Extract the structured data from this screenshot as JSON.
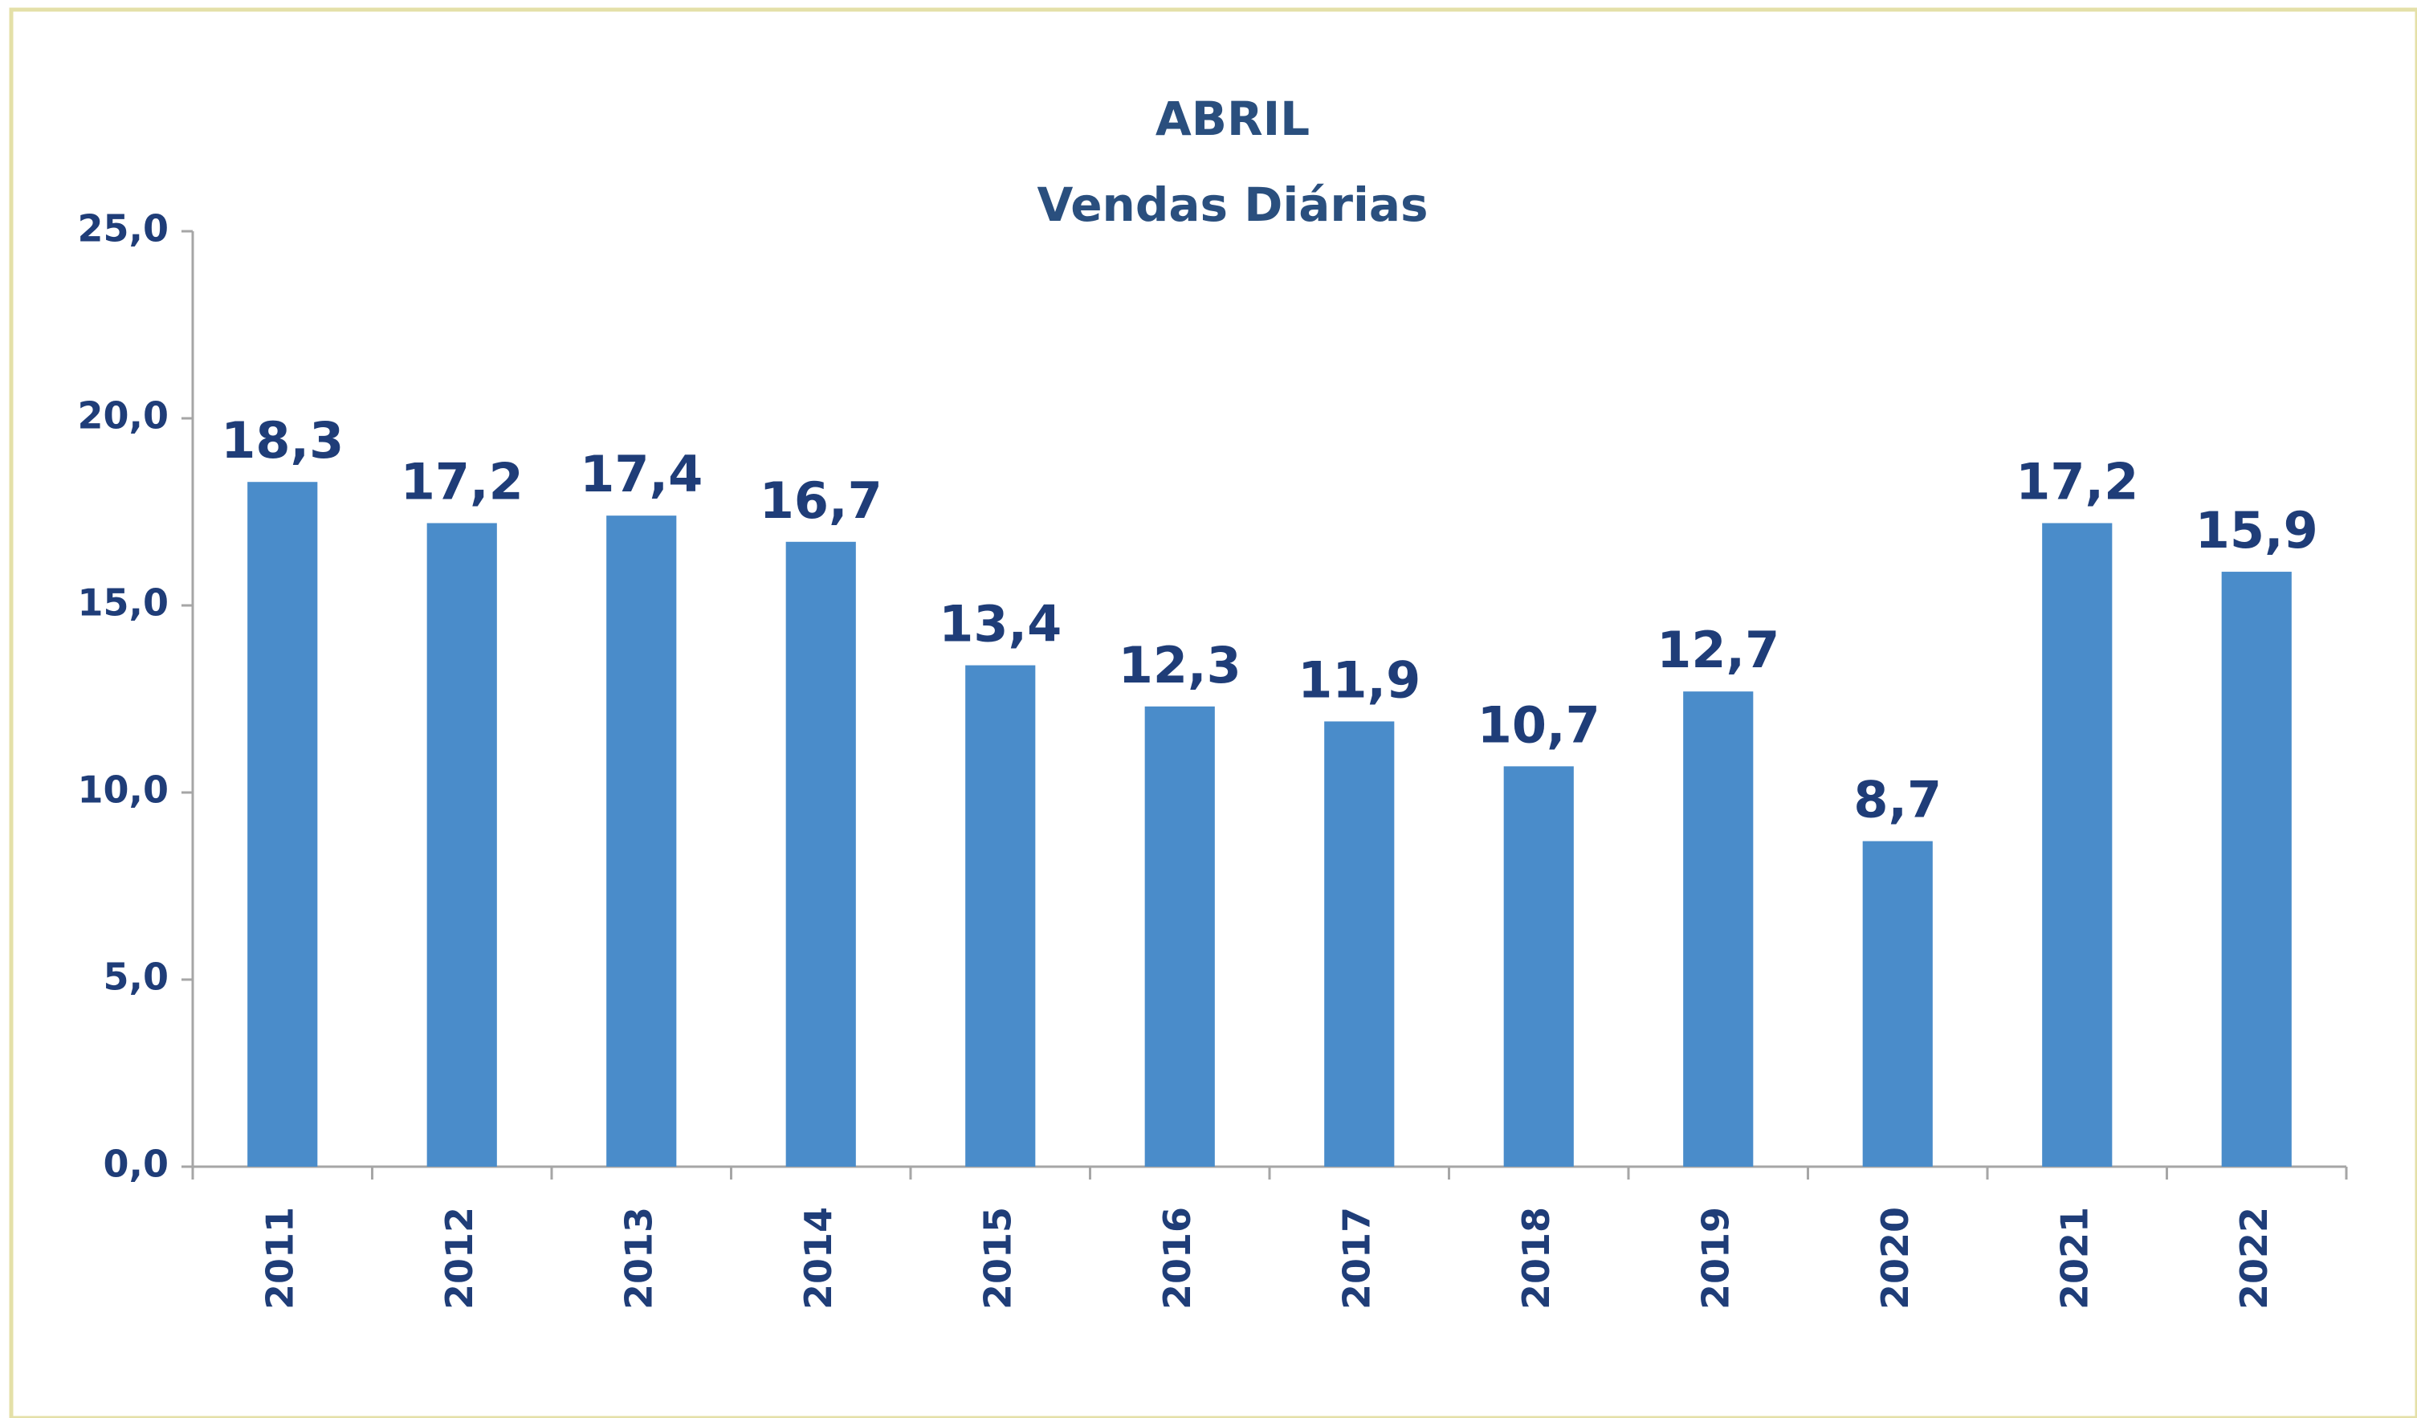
{
  "chart_data": {
    "type": "bar",
    "title": "ABRIL",
    "subtitle": "Vendas Diárias",
    "categories": [
      "2011",
      "2012",
      "2013",
      "2014",
      "2015",
      "2016",
      "2017",
      "2018",
      "2019",
      "2020",
      "2021",
      "2022"
    ],
    "values": [
      18.3,
      17.2,
      17.4,
      16.7,
      13.4,
      12.3,
      11.9,
      10.7,
      12.7,
      8.7,
      17.2,
      15.9
    ],
    "value_labels": [
      "18,3",
      "17,2",
      "17,4",
      "16,7",
      "13,4",
      "12,3",
      "11,9",
      "10,7",
      "12,7",
      "8,7",
      "17,2",
      "15,9"
    ],
    "color": "#4a8cca",
    "ylim": [
      0,
      25
    ],
    "yticks": [
      {
        "value": 0,
        "label": "0,0"
      },
      {
        "value": 5,
        "label": "5,0"
      },
      {
        "value": 10,
        "label": "10,0"
      },
      {
        "value": 15,
        "label": "15,0"
      },
      {
        "value": 20,
        "label": "20,0"
      },
      {
        "value": 25,
        "label": "25,0"
      }
    ],
    "grid": false
  }
}
